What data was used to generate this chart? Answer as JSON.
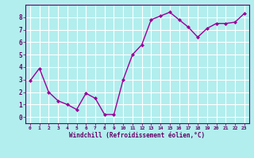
{
  "x": [
    0,
    1,
    2,
    3,
    4,
    5,
    6,
    7,
    8,
    9,
    10,
    11,
    12,
    13,
    14,
    15,
    16,
    17,
    18,
    19,
    20,
    21,
    22,
    23
  ],
  "y": [
    2.9,
    3.9,
    2.0,
    1.3,
    1.0,
    0.6,
    1.9,
    1.5,
    0.2,
    0.2,
    3.0,
    5.0,
    5.8,
    7.8,
    8.1,
    8.4,
    7.8,
    7.2,
    6.4,
    7.1,
    7.5,
    7.5,
    7.6,
    8.3
  ],
  "xlabel": "Windchill (Refroidissement éolien,°C)",
  "xlim": [
    -0.5,
    23.5
  ],
  "ylim": [
    -0.5,
    9.0
  ],
  "yticks": [
    0,
    1,
    2,
    3,
    4,
    5,
    6,
    7,
    8
  ],
  "xticks": [
    0,
    1,
    2,
    3,
    4,
    5,
    6,
    7,
    8,
    9,
    10,
    11,
    12,
    13,
    14,
    15,
    16,
    17,
    18,
    19,
    20,
    21,
    22,
    23
  ],
  "line_color": "#990099",
  "marker_color": "#990099",
  "bg_color": "#b2eeee",
  "grid_color": "#ffffff",
  "axis_label_color": "#660066",
  "tick_color": "#660066",
  "font_family": "monospace"
}
